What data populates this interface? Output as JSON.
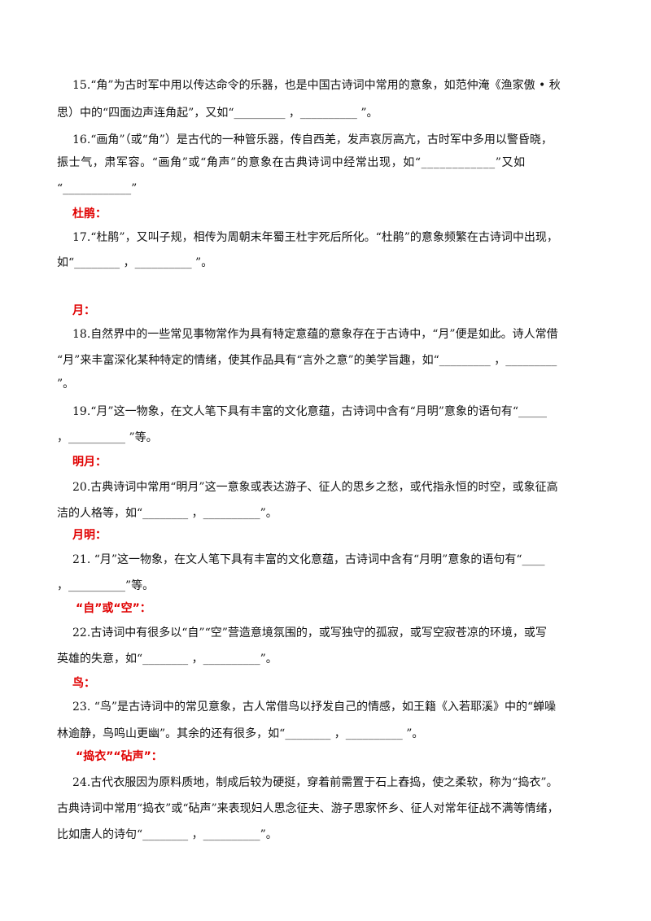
{
  "sections": [
    {
      "id": "q15",
      "lines": [
        "15.“角”为古时军中用以传达命令的乐器，也是中国古诗词中常用的意象，如范仲淹《渔家傲 • 秋",
        "思）中的“四面边声连角起”，又如“_________ ，__________ ”。"
      ]
    },
    {
      "id": "q16",
      "lines": [
        " 16.“画角”（或“角”）是古代的一种管乐器，传自西羌，发声哀厉高亢，古时军中多用以警昏晓，",
        "振士气，肃军容。“画角”或“角声”的意象在古典诗词中经常出现，如“____________”又如",
        "“____________”"
      ]
    },
    {
      "id": "h-dujuan",
      "heading": "杜鹃："
    },
    {
      "id": "q17",
      "lines": [
        "17.“杜鹃”，又叫子规，相传为周朝末年蜀王杜宇死后所化。“杜鹃”的意象频繁在古诗词中出现，",
        "如“________ ，__________ ”。"
      ]
    },
    {
      "id": "h-yue",
      "heading": "月："
    },
    {
      "id": "q18",
      "lines": [
        "18.自然界中的一些常见事物常作为具有特定意蕴的意象存在于古诗中，“月”便是如此。诗人常借",
        "“月”来丰富深化某种特定的情绪，使其作品具有“言外之意”的美学旨趣，如“_________ ，_________",
        "”。"
      ]
    },
    {
      "id": "q19",
      "lines": [
        "19.“月”这一物象，在文人笔下具有丰富的文化意蕴，古诗词中含有“月明”意象的语句有“_____",
        "，__________ ”等。"
      ]
    },
    {
      "id": "h-mingyue",
      "heading": "明月："
    },
    {
      "id": "q20",
      "lines": [
        "20.古典诗词中常用“明月”这一意象或表达游子、征人的思乡之愁，或代指永恒的时空，或象征高",
        "洁的人格等，如“________ ，__________”。"
      ]
    },
    {
      "id": "h-yueming",
      "heading": "月明："
    },
    {
      "id": "q21",
      "lines": [
        "21. “月”这一物象，在文人笔下具有丰富的文化意蕴，古诗词中含有“月明”意象的语句有“____",
        "，__________”等。"
      ]
    },
    {
      "id": "h-zikong",
      "heading": "“自”或“空”："
    },
    {
      "id": "q22",
      "lines": [
        "22.古诗词中有很多以“自”“空”营造意境氛围的，或写独守的孤寂，或写空寂苍凉的环境，或写",
        "英雄的失意，如“________ ，__________”。"
      ]
    },
    {
      "id": "h-niao",
      "heading": "鸟："
    },
    {
      "id": "q23",
      "lines": [
        "23. “鸟”是古诗词中的常见意象，古人常借鸟以抒发自己的情感，如王籍《入若耶溪》中的“蝉噪",
        "林逾静，鸟鸣山更幽”。其余的还有很多，如“________ ，__________ ”。"
      ]
    },
    {
      "id": "h-daoyi",
      "heading": "“捣衣”“砧声”："
    },
    {
      "id": "q24",
      "lines": [
        "24.古代衣服因为原料质地，制成后较为硬挺，穿着前需置于石上舂捣，使之柔软，称为“捣衣”。",
        "古典诗词中常用“捣衣”或“砧声”来表现妇人思念征夫、游子思家怀乡、征人对常年征战不满等情绪，",
        "比如唐人的诗句“________ ，__________”。"
      ]
    }
  ],
  "colors": {
    "heading": "#e00000",
    "text": "#111111"
  }
}
